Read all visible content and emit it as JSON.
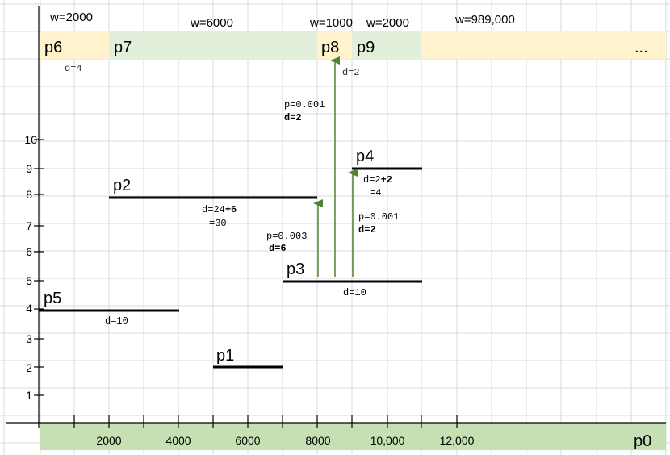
{
  "colors": {
    "grid": "#d9d9d9",
    "band_orange": "#fff2cc",
    "band_green_light": "#e2efda",
    "band_green": "#c6e0b4",
    "arrow": "#548235",
    "segment": "#000000"
  },
  "top_band": {
    "widths": [
      "w=2000",
      "w=6000",
      "w=1000",
      "w=2000",
      "w=989,000"
    ],
    "cells": [
      "p6",
      "p7",
      "p8",
      "p9",
      "..."
    ],
    "notes": [
      "d=4",
      "d=2"
    ]
  },
  "y_axis": {
    "ticks": [
      "1",
      "2",
      "3",
      "4",
      "5",
      "6",
      "7",
      "8",
      "9",
      "10"
    ]
  },
  "x_axis": {
    "band_label": "p0",
    "ticks": [
      "2000",
      "4000",
      "6000",
      "8000",
      "10,000",
      "12,000"
    ]
  },
  "segments": [
    {
      "label": "p1",
      "note": []
    },
    {
      "label": "p2",
      "note": [
        "d=24",
        "+6",
        "=30"
      ]
    },
    {
      "label": "p3",
      "note": [
        "d=10"
      ]
    },
    {
      "label": "p4",
      "note": [
        "d=2",
        "+2",
        "=4"
      ]
    },
    {
      "label": "p5",
      "note": [
        "d=10"
      ]
    }
  ],
  "arrows": [
    {
      "p": "p=0.003",
      "d": "d=6"
    },
    {
      "p": "p=0.001",
      "d": "d=2"
    },
    {
      "p": "p=0.001",
      "d": "d=2"
    }
  ]
}
